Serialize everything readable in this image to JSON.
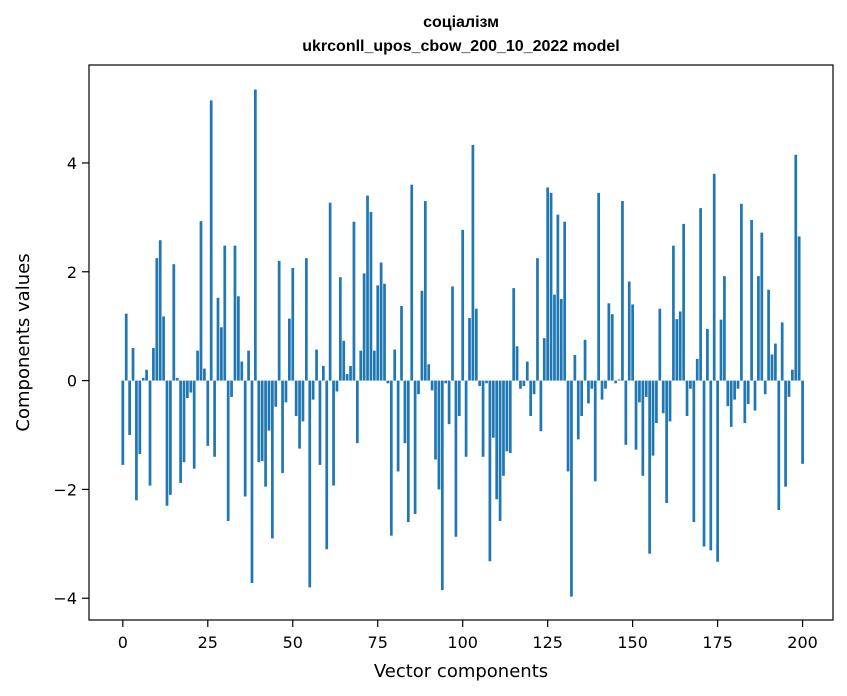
{
  "chart_data": {
    "type": "bar",
    "title": "соціалізм",
    "subtitle": "ukrconll_upos_cbow_200_10_2022 model",
    "xlabel": "Vector components",
    "ylabel": "Components values",
    "xlim": [
      -9.95,
      208.95
    ],
    "ylim": [
      -4.4,
      5.8
    ],
    "xticks": [
      0,
      25,
      50,
      75,
      100,
      125,
      150,
      175,
      200
    ],
    "yticks": [
      -4,
      -2,
      0,
      2,
      4
    ],
    "xtick_labels": [
      "0",
      "25",
      "50",
      "75",
      "100",
      "125",
      "150",
      "175",
      "200"
    ],
    "ytick_labels": [
      "−4",
      "−2",
      "0",
      "2",
      "4"
    ],
    "grid": false,
    "bar_color": "#1f77b4",
    "values": [
      -1.55,
      1.23,
      -1.0,
      0.6,
      -2.2,
      -1.35,
      0.05,
      0.2,
      -1.93,
      0.6,
      2.25,
      2.58,
      1.18,
      -2.3,
      -2.1,
      2.14,
      0.05,
      -1.88,
      -1.5,
      -0.32,
      -0.22,
      -1.62,
      0.55,
      2.93,
      0.22,
      -1.2,
      5.15,
      -1.4,
      1.52,
      0.98,
      2.48,
      -2.58,
      -0.3,
      2.48,
      1.55,
      0.35,
      -2.13,
      0.55,
      -3.72,
      5.35,
      -1.5,
      -1.48,
      -1.95,
      -0.92,
      -2.9,
      -0.48,
      2.2,
      -1.7,
      -0.4,
      1.14,
      2.07,
      -0.65,
      -1.25,
      -0.75,
      2.25,
      -3.8,
      -0.35,
      0.57,
      -1.55,
      0.27,
      -3.1,
      3.27,
      -1.93,
      -0.2,
      1.9,
      0.73,
      0.12,
      0.27,
      2.92,
      -1.15,
      0.55,
      1.97,
      3.4,
      3.1,
      0.55,
      1.75,
      2.17,
      1.78,
      -0.05,
      -2.85,
      0.57,
      -1.67,
      1.37,
      -1.15,
      -2.6,
      3.6,
      -2.45,
      -0.25,
      1.65,
      3.3,
      0.3,
      -0.18,
      -1.45,
      -2.0,
      -3.85,
      -0.05,
      -0.8,
      1.73,
      -2.87,
      -0.65,
      2.77,
      -1.4,
      1.15,
      4.33,
      1.32,
      -0.1,
      -1.4,
      -0.05,
      -3.32,
      -1.05,
      -2.18,
      -2.58,
      -1.75,
      -1.3,
      -1.33,
      1.7,
      0.63,
      -0.15,
      -0.1,
      0.35,
      -0.65,
      -0.25,
      2.25,
      -0.93,
      0.78,
      3.55,
      3.45,
      1.58,
      3.05,
      1.5,
      2.92,
      -1.67,
      -3.97,
      0.47,
      -1.08,
      -0.65,
      0.75,
      -0.42,
      -0.15,
      -1.85,
      3.45,
      -0.35,
      -0.15,
      1.42,
      1.22,
      -0.05,
      0.02,
      3.3,
      -1.18,
      1.82,
      1.4,
      -1.27,
      -0.4,
      -1.75,
      -0.3,
      -3.18,
      -1.38,
      -0.78,
      1.32,
      -0.6,
      -2.25,
      -0.75,
      2.48,
      1.13,
      1.27,
      2.88,
      -0.65,
      -0.15,
      -2.6,
      0.4,
      3.17,
      -3.05,
      0.95,
      -3.12,
      3.8,
      -3.33,
      1.12,
      1.92,
      -0.47,
      -0.85,
      -0.35,
      -0.15,
      3.25,
      -0.78,
      -0.43,
      2.95,
      -0.55,
      1.92,
      2.72,
      -0.25,
      1.67,
      0.48,
      0.68,
      -2.38,
      1.07,
      -1.95,
      -0.3,
      0.2,
      4.15,
      2.65,
      -1.53
    ]
  }
}
